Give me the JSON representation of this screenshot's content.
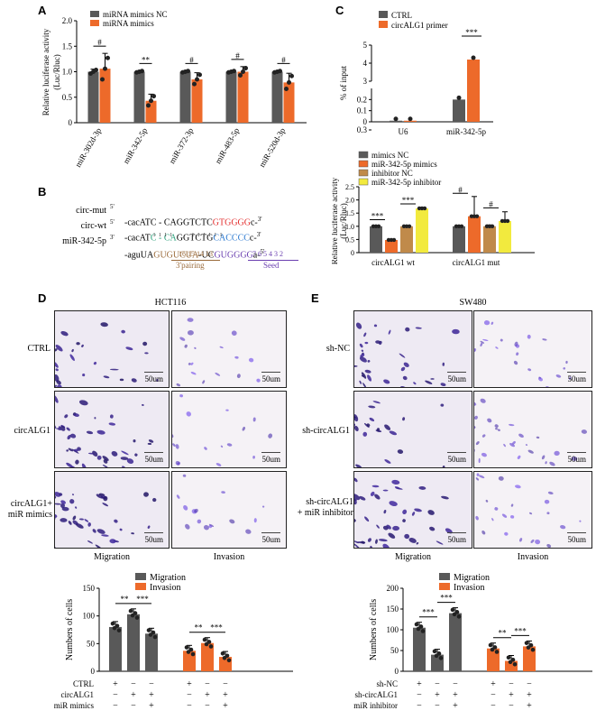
{
  "colors": {
    "gray": "#595959",
    "orange": "#ed6a2a",
    "tan": "#c08a4a",
    "yellow": "#f2ea3e",
    "purple": "#6a3fb0",
    "red": "#e32d2d",
    "green": "#2aa07a",
    "blue": "#2a78d0",
    "brown": "#9a6a3a"
  },
  "panels": {
    "A": "A",
    "B": "B",
    "C": "C",
    "D": "D",
    "E": "E"
  },
  "chart_A": {
    "type": "bar",
    "legend": [
      "miRNA mimics NC",
      "miRNA mimics"
    ],
    "ylabel": "Relative luciferase activity\n(Luc/Rluc)",
    "ylim": [
      0,
      2
    ],
    "yticks": [
      "0",
      "0.5",
      "1.0",
      "1.5",
      "2.0"
    ],
    "categories": [
      "miR-302d-3p",
      "miR-342-5p",
      "miR-372-3p",
      "miR-483-5p",
      "miR-520d-3p"
    ],
    "series": [
      {
        "name": "miRNA mimics NC",
        "values": [
          1.0,
          1.0,
          1.0,
          1.0,
          1.0
        ],
        "err": [
          0.05,
          0.02,
          0.02,
          0.02,
          0.02
        ]
      },
      {
        "name": "miRNA mimics",
        "values": [
          1.06,
          0.43,
          0.85,
          1.0,
          0.79
        ],
        "err": [
          0.3,
          0.13,
          0.13,
          0.1,
          0.18
        ]
      }
    ],
    "sig": [
      "#",
      "**",
      "#",
      "#",
      "#"
    ]
  },
  "chart_B": {
    "legend": [
      "mimics NC",
      "miR-342-5p mimics",
      "inhibitor NC",
      "miR-342-5p inhibitor"
    ],
    "ylabel": "Relative luciferase activity\n(Luc/Rluc)",
    "ylim": [
      0,
      2.5
    ],
    "yticks": [
      "0",
      "0.5",
      "1.0",
      "1.5",
      "2.0",
      "2.5"
    ],
    "groups": [
      "circALG1 wt",
      "circALG1 mut"
    ],
    "values": [
      [
        1.0,
        0.48,
        1.0,
        1.68
      ],
      [
        1.0,
        1.38,
        1.0,
        1.2
      ]
    ],
    "err": [
      [
        0.02,
        0.03,
        0.02,
        0.04
      ],
      [
        0.02,
        0.75,
        0.05,
        0.35
      ]
    ],
    "sig": [
      "***",
      "***",
      "#",
      "#"
    ]
  },
  "chart_C": {
    "legend": [
      "CTRL",
      "circALG1 primer"
    ],
    "ylabel": "% of input",
    "categories": [
      "U6",
      "miR-342-5p"
    ],
    "ytick_low": [
      "0",
      "0.1",
      "0.2",
      "0.3"
    ],
    "ytick_high": [
      "3",
      "4",
      "5"
    ],
    "values": [
      [
        0.01,
        0.01
      ],
      [
        0.2,
        4.2
      ]
    ],
    "sig": "***"
  },
  "sequences": {
    "mut_label": "circ-mut",
    "wt_label": "circ-wt",
    "mir_label": "miR-342-5p",
    "mut_prefix": "5'",
    "wt_prefix": "5'",
    "mir_prefix": "3'",
    "mut_suffix": "3'",
    "wt_suffix": "3'",
    "mir_suffix": "5'",
    "mut_a": "-cacATC - CAGGTCTC",
    "mut_b": "GTGGGG",
    "mut_c": "c-",
    "wt_a": "-cacAT",
    "wt_b": "C - CA",
    "wt_c": "GGTCTG",
    "wt_d": "CACCCC",
    "wt_e": "c-",
    "mir_a": "-aguUA",
    "mir_b": "GUGUCUA",
    "mir_c": "-UC",
    "mir_d": "GUGGGG",
    "mir_e": "a-",
    "pair_nums": "16 15 14 13",
    "pair_label": "3'pairing",
    "seed_nums": "7 6 5 4 3 2",
    "seed_label": "Seed"
  },
  "panel_D": {
    "title": "HCT116",
    "rows": [
      "CTRL",
      "circALG1",
      "circALG1+\nmiR mimics"
    ],
    "cols": [
      "Migration",
      "Invasion"
    ],
    "scale": "50um",
    "chart": {
      "legend": [
        "Migration",
        "Invasion"
      ],
      "ylabel": "Numbers of cells",
      "yticks": [
        "0",
        "50",
        "100",
        "150"
      ],
      "ylim": [
        0,
        150
      ],
      "migration": [
        80,
        103,
        68
      ],
      "invasion": [
        37,
        51,
        26
      ],
      "sig": [
        "**",
        "***",
        "**",
        "***"
      ],
      "conditions": [
        {
          "label": "CTRL",
          "marks": [
            "+",
            "−",
            "−",
            "+",
            "−",
            "−"
          ]
        },
        {
          "label": "circALG1",
          "marks": [
            "−",
            "+",
            "+",
            "−",
            "+",
            "+"
          ]
        },
        {
          "label": "miR mimics",
          "marks": [
            "−",
            "−",
            "+",
            "−",
            "−",
            "+"
          ]
        }
      ]
    }
  },
  "panel_E": {
    "title": "SW480",
    "rows": [
      "sh-NC",
      "sh-circALG1",
      "sh-circALG1\n+ miR inhibitor"
    ],
    "cols": [
      "Migration",
      "Invasion"
    ],
    "scale": "50um",
    "chart": {
      "legend": [
        "Migration",
        "Invasion"
      ],
      "ylabel": "Numbers of cells",
      "yticks": [
        "0",
        "50",
        "100",
        "150",
        "200"
      ],
      "ylim": [
        0,
        200
      ],
      "migration": [
        105,
        40,
        140
      ],
      "invasion": [
        55,
        25,
        60
      ],
      "sig": [
        "***",
        "***",
        "**",
        "***"
      ],
      "conditions": [
        {
          "label": "sh-NC",
          "marks": [
            "+",
            "−",
            "−",
            "+",
            "−",
            "−"
          ]
        },
        {
          "label": "sh-circALG1",
          "marks": [
            "−",
            "+",
            "+",
            "−",
            "+",
            "+"
          ]
        },
        {
          "label": "miR inhibitor",
          "marks": [
            "−",
            "−",
            "+",
            "−",
            "−",
            "+"
          ]
        }
      ]
    }
  }
}
